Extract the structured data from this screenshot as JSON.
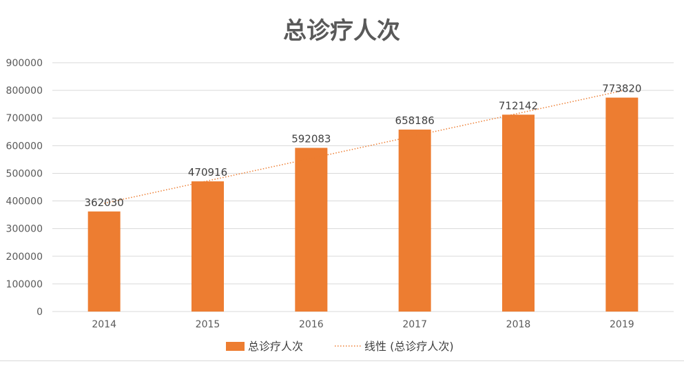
{
  "chart_data": {
    "type": "bar",
    "title": "总诊疗人次",
    "categories": [
      "2014",
      "2015",
      "2016",
      "2017",
      "2018",
      "2019"
    ],
    "series": [
      {
        "name": "总诊疗人次",
        "values": [
          362030,
          470916,
          592083,
          658186,
          712142,
          773820
        ],
        "color": "#ed7d31"
      }
    ],
    "trendline": {
      "name": "线性 (总诊疗人次)",
      "type": "linear",
      "style": "dotted",
      "color": "#ed7d31"
    },
    "yticks": [
      "0",
      "100000",
      "200000",
      "300000",
      "400000",
      "500000",
      "600000",
      "700000",
      "800000",
      "900000"
    ],
    "ylim": [
      0,
      900000
    ],
    "grid": true,
    "legend_position": "bottom",
    "xlabel": "",
    "ylabel": ""
  }
}
